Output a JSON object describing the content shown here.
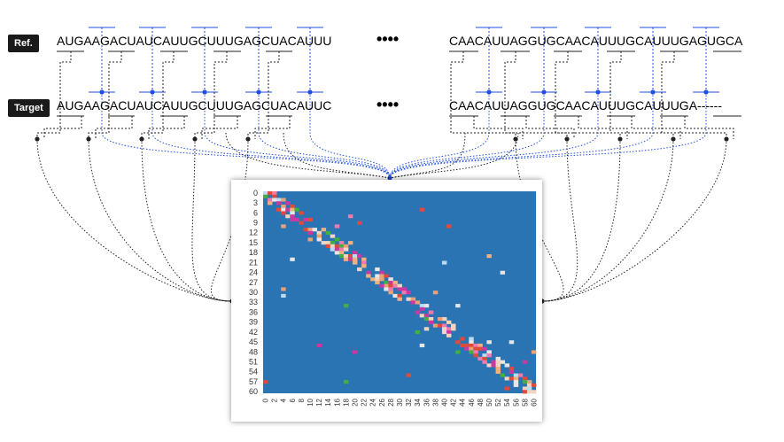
{
  "labels": {
    "ref_tag": "Ref.",
    "target_tag": "Target"
  },
  "sequences": {
    "ref_left": "AUGAAGACUAUCAUUGCUUUGAGCUACAUUU",
    "ref_right": "CAACAUUAGGUGCAACAUUUGCAUUUGAGUGCA",
    "target_left": "AUGAAGACUAUCAUUGCUUUGAGCUACAUUC",
    "target_right": "CAACAUUAGGUGCAACAUUUGCAUUUGA------",
    "ellipsis": "••••"
  },
  "colors": {
    "matrix_background": "#2b74b3",
    "blue_connector": "#1f4fe0",
    "black_connector": "#222222",
    "cell_palette": [
      "#f0d5c0",
      "#e8a27a",
      "#e04a3a",
      "#c93aa0",
      "#f07ab0",
      "#bcdcf0",
      "#e6e6e6",
      "#40b040",
      "#f0b080"
    ]
  },
  "chart_data": {
    "type": "heatmap",
    "ytick_labels": [
      "0",
      "3",
      "6",
      "9",
      "12",
      "15",
      "18",
      "21",
      "24",
      "27",
      "30",
      "33",
      "36",
      "39",
      "42",
      "45",
      "48",
      "51",
      "54",
      "57",
      "60"
    ],
    "xtick_labels": [
      "0",
      "2",
      "4",
      "6",
      "8",
      "10",
      "12",
      "14",
      "16",
      "18",
      "20",
      "22",
      "24",
      "26",
      "28",
      "30",
      "32",
      "34",
      "36",
      "38",
      "40",
      "42",
      "44",
      "46",
      "48",
      "50",
      "52",
      "54",
      "56",
      "58",
      "60"
    ],
    "n": 61
  }
}
